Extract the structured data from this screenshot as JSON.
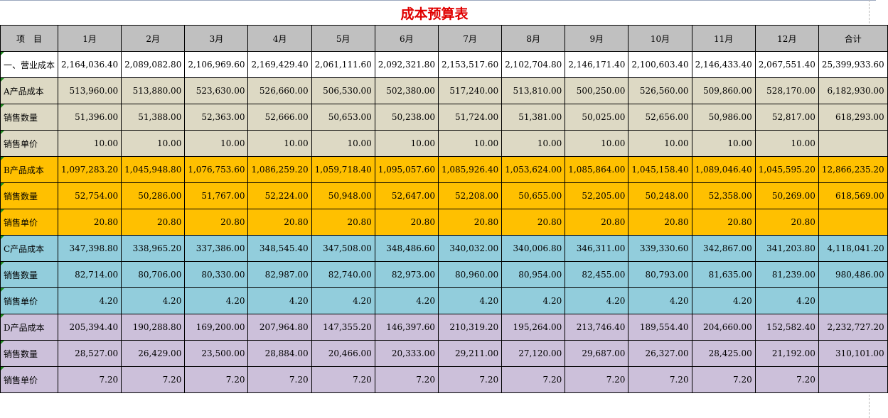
{
  "title": "成本预算表",
  "header": [
    "项　目",
    "1月",
    "2月",
    "3月",
    "4月",
    "5月",
    "6月",
    "7月",
    "8月",
    "9月",
    "10月",
    "11月",
    "12月",
    "合计"
  ],
  "rows": [
    {
      "label": "一、营业成本",
      "group": "total",
      "sub": false,
      "values": [
        "2,164,036.40",
        "2,089,082.80",
        "2,106,969.60",
        "2,169,429.40",
        "2,061,111.60",
        "2,092,321.80",
        "2,153,517.60",
        "2,102,704.80",
        "2,146,171.40",
        "2,100,603.40",
        "2,146,433.40",
        "2,067,551.40",
        "25,399,933.60"
      ]
    },
    {
      "label": "A产品成本",
      "group": "a",
      "sub": false,
      "values": [
        "513,960.00",
        "513,880.00",
        "523,630.00",
        "526,660.00",
        "506,530.00",
        "502,380.00",
        "517,240.00",
        "513,810.00",
        "500,250.00",
        "526,560.00",
        "509,860.00",
        "528,170.00",
        "6,182,930.00"
      ]
    },
    {
      "label": "销售数量",
      "group": "a",
      "sub": true,
      "values": [
        "51,396.00",
        "51,388.00",
        "52,363.00",
        "52,666.00",
        "50,653.00",
        "50,238.00",
        "51,724.00",
        "51,381.00",
        "50,025.00",
        "52,656.00",
        "50,986.00",
        "52,817.00",
        "618,293.00"
      ]
    },
    {
      "label": "销售单价",
      "group": "a",
      "sub": true,
      "values": [
        "10.00",
        "10.00",
        "10.00",
        "10.00",
        "10.00",
        "10.00",
        "10.00",
        "10.00",
        "10.00",
        "10.00",
        "10.00",
        "10.00",
        ""
      ]
    },
    {
      "label": "B产品成本",
      "group": "b",
      "sub": false,
      "values": [
        "1,097,283.20",
        "1,045,948.80",
        "1,076,753.60",
        "1,086,259.20",
        "1,059,718.40",
        "1,095,057.60",
        "1,085,926.40",
        "1,053,624.00",
        "1,085,864.00",
        "1,045,158.40",
        "1,089,046.40",
        "1,045,595.20",
        "12,866,235.20"
      ]
    },
    {
      "label": "销售数量",
      "group": "b",
      "sub": true,
      "values": [
        "52,754.00",
        "50,286.00",
        "51,767.00",
        "52,224.00",
        "50,948.00",
        "52,647.00",
        "52,208.00",
        "50,655.00",
        "52,205.00",
        "50,248.00",
        "52,358.00",
        "50,269.00",
        "618,569.00"
      ]
    },
    {
      "label": "销售单价",
      "group": "b",
      "sub": true,
      "values": [
        "20.80",
        "20.80",
        "20.80",
        "20.80",
        "20.80",
        "20.80",
        "20.80",
        "20.80",
        "20.80",
        "20.80",
        "20.80",
        "20.80",
        ""
      ]
    },
    {
      "label": "C产品成本",
      "group": "c",
      "sub": false,
      "values": [
        "347,398.80",
        "338,965.20",
        "337,386.00",
        "348,545.40",
        "347,508.00",
        "348,486.60",
        "340,032.00",
        "340,006.80",
        "346,311.00",
        "339,330.60",
        "342,867.00",
        "341,203.80",
        "4,118,041.20"
      ]
    },
    {
      "label": "销售数量",
      "group": "c",
      "sub": true,
      "values": [
        "82,714.00",
        "80,706.00",
        "80,330.00",
        "82,987.00",
        "82,740.00",
        "82,973.00",
        "80,960.00",
        "80,954.00",
        "82,455.00",
        "80,793.00",
        "81,635.00",
        "81,239.00",
        "980,486.00"
      ]
    },
    {
      "label": "销售单价",
      "group": "c",
      "sub": true,
      "values": [
        "4.20",
        "4.20",
        "4.20",
        "4.20",
        "4.20",
        "4.20",
        "4.20",
        "4.20",
        "4.20",
        "4.20",
        "4.20",
        "4.20",
        ""
      ]
    },
    {
      "label": "D产品成本",
      "group": "d",
      "sub": false,
      "values": [
        "205,394.40",
        "190,288.80",
        "169,200.00",
        "207,964.80",
        "147,355.20",
        "146,397.60",
        "210,319.20",
        "195,264.00",
        "213,746.40",
        "189,554.40",
        "204,660.00",
        "152,582.40",
        "2,232,727.20"
      ]
    },
    {
      "label": "销售数量",
      "group": "d",
      "sub": true,
      "values": [
        "28,527.00",
        "26,429.00",
        "23,500.00",
        "28,884.00",
        "20,466.00",
        "20,333.00",
        "29,211.00",
        "27,120.00",
        "29,687.00",
        "26,327.00",
        "28,425.00",
        "21,192.00",
        "310,101.00"
      ]
    },
    {
      "label": "销售单价",
      "group": "d",
      "sub": true,
      "values": [
        "7.20",
        "7.20",
        "7.20",
        "7.20",
        "7.20",
        "7.20",
        "7.20",
        "7.20",
        "7.20",
        "7.20",
        "7.20",
        "7.20",
        ""
      ]
    }
  ],
  "colors": {
    "title": "#e00000",
    "header": "#c0c0c0",
    "group_a": "#ddd9c4",
    "group_b": "#ffc000",
    "group_c": "#92cddc",
    "group_d": "#ccc0da",
    "comment_marker": "#1e8c1e"
  }
}
